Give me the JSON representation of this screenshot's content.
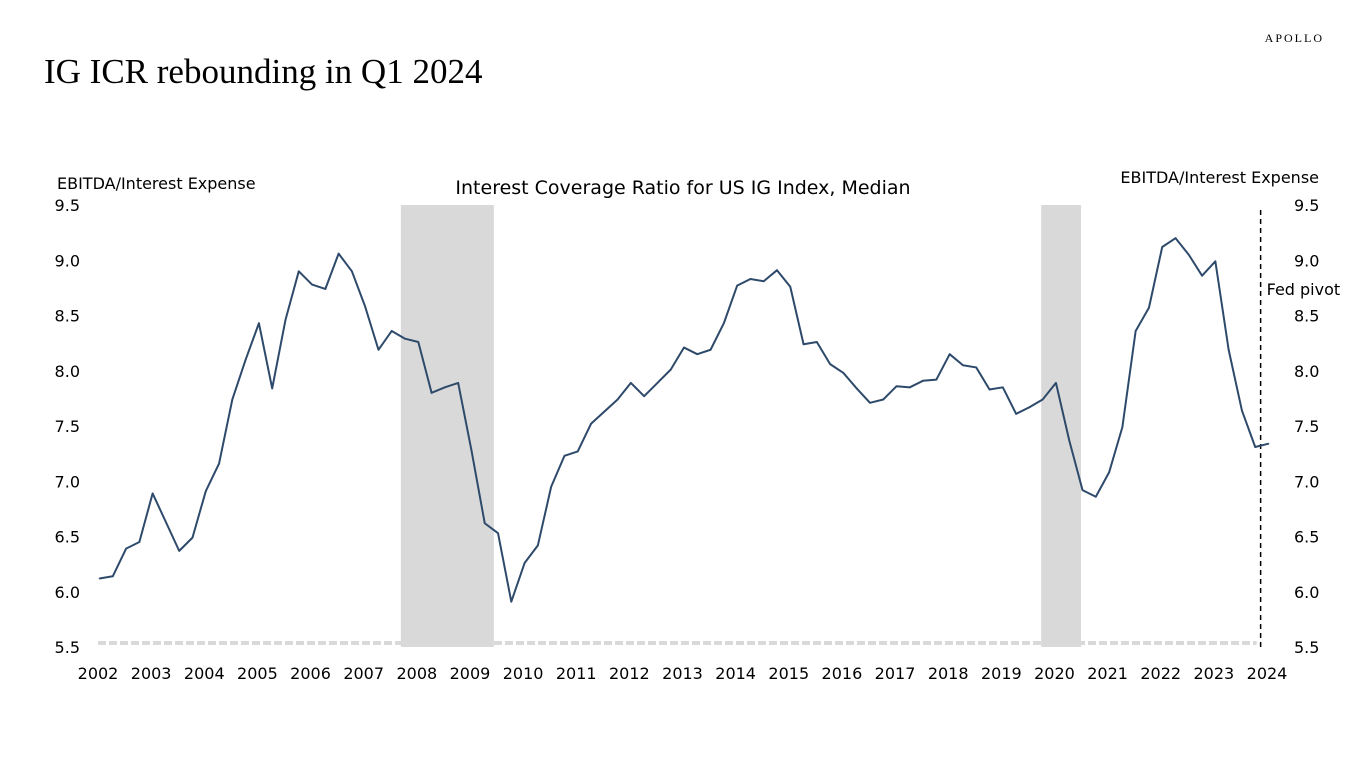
{
  "header": {
    "logo": "APOLLO",
    "title": "IG ICR rebounding in Q1 2024"
  },
  "chart_data": {
    "type": "line",
    "title": "Interest Coverage Ratio for US IG Index, Median",
    "ylabel_left": "EBITDA/Interest Expense",
    "ylabel_right": "EBITDA/Interest Expense",
    "ylim": [
      5.5,
      9.5
    ],
    "yticks": [
      "5.5",
      "6.0",
      "6.5",
      "7.0",
      "7.5",
      "8.0",
      "8.5",
      "9.0",
      "9.5"
    ],
    "xlim": [
      2002,
      2024
    ],
    "xticks": [
      "2002",
      "2003",
      "2004",
      "2005",
      "2006",
      "2007",
      "2008",
      "2009",
      "2010",
      "2011",
      "2012",
      "2013",
      "2014",
      "2015",
      "2016",
      "2017",
      "2018",
      "2019",
      "2020",
      "2021",
      "2022",
      "2023",
      "2024"
    ],
    "x_start": 2002,
    "x_step": 0.25,
    "series": [
      {
        "name": "Interest Coverage Ratio",
        "color": "#2e4a6b",
        "values": [
          6.12,
          6.14,
          6.39,
          6.45,
          6.89,
          6.63,
          6.37,
          6.49,
          6.91,
          7.16,
          7.74,
          8.1,
          8.43,
          7.84,
          8.46,
          8.9,
          8.78,
          8.74,
          9.06,
          8.9,
          8.58,
          8.19,
          8.36,
          8.29,
          8.26,
          7.8,
          7.85,
          7.89,
          7.28,
          6.62,
          6.53,
          5.91,
          6.26,
          6.42,
          6.95,
          7.23,
          7.27,
          7.52,
          7.63,
          7.74,
          7.89,
          7.77,
          7.89,
          8.01,
          8.21,
          8.15,
          8.19,
          8.43,
          8.77,
          8.83,
          8.81,
          8.91,
          8.76,
          8.24,
          8.26,
          8.06,
          7.98,
          7.84,
          7.71,
          7.74,
          7.86,
          7.85,
          7.91,
          7.92,
          8.15,
          8.05,
          8.03,
          7.83,
          7.85,
          7.61,
          7.67,
          7.74,
          7.89,
          7.37,
          6.92,
          6.86,
          7.08,
          7.49,
          8.36,
          8.57,
          9.12,
          9.2,
          9.05,
          8.86,
          8.99,
          8.19,
          7.64,
          7.31,
          7.34
        ]
      }
    ],
    "recessions": [
      [
        2007.7,
        2009.45
      ],
      [
        2019.75,
        2020.5
      ]
    ],
    "recession_color": "#d9d9d9",
    "annotation": {
      "label": "Fed pivot",
      "x": 2023.88
    },
    "grid": false
  }
}
